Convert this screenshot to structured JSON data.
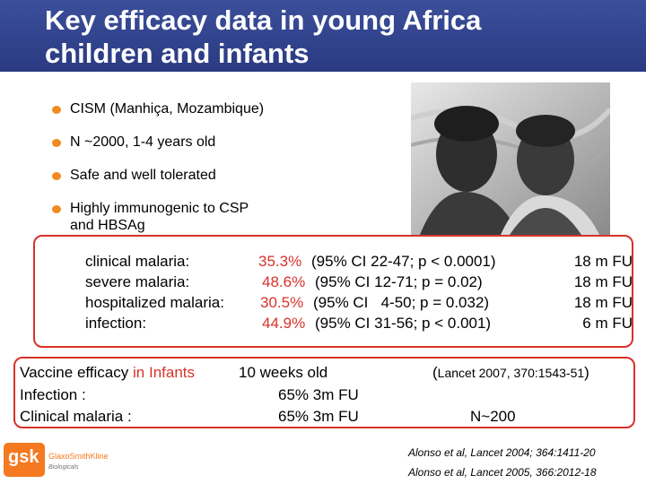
{
  "title_lines": [
    "Key efficacy data in young Africa",
    "children and infants"
  ],
  "bullets": [
    "CISM (Manhiça, Mozambique)",
    "N ~2000, 1-4 years old",
    "Safe and well tolerated",
    "Highly immunogenic to CSP and HBSAg"
  ],
  "efficacy_rows": [
    {
      "label": "clinical malaria:",
      "value": "35.3%",
      "ci": "(95% CI 22-47; p < 0.0001)",
      "followup": "18 m FU"
    },
    {
      "label": "severe malaria:",
      "value": "48.6%",
      "ci": "(95% CI 12-71; p = 0.02)",
      "followup": "18 m FU"
    },
    {
      "label": "hospitalized malaria:",
      "value": "30.5%",
      "ci": "(95% CI   4-50; p = 0.032)",
      "followup": "18 m FU"
    },
    {
      "label": "infection:",
      "value": "44.9%",
      "ci": "(95% CI 31-56; p < 0.001)",
      "followup": "6 m FU"
    }
  ],
  "infants": {
    "heading_prefix": "Vaccine efficacy",
    "heading_highlight": "in Infants",
    "age": "10 weeks old",
    "reference_open": "(",
    "reference": "Lancet 2007, 370:1543-51",
    "reference_close": ")",
    "infection_label": "Infection :",
    "infection_value": "65% 3m FU",
    "clinical_label": "Clinical malaria :",
    "clinical_value": "65% 3m FU",
    "n": "N~200"
  },
  "citations": [
    "Alonso et al, Lancet 2004; 364:1411-20",
    "Alonso et al, Lancet 2005, 366:2012-18"
  ],
  "logo": {
    "brand": "gsk",
    "company": "GlaxoSmithKline",
    "division": "Biologicals"
  },
  "colors": {
    "header": "#2f4290",
    "accent_red": "#d8322a",
    "bullet_orange": "#f28a20",
    "logo_orange": "#f47920"
  }
}
